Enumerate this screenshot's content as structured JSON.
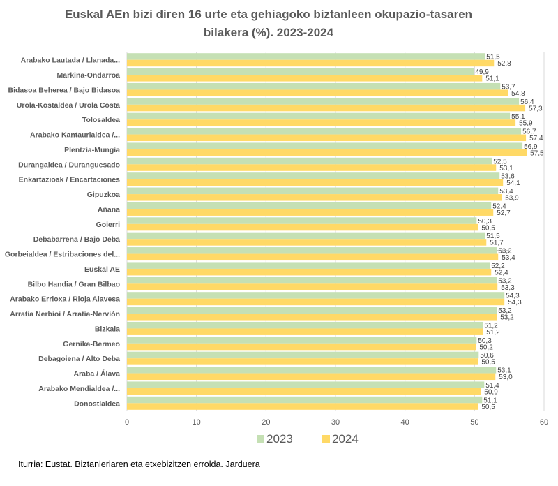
{
  "chart_data": {
    "type": "bar",
    "orientation": "horizontal",
    "title": "Euskal AEn bizi diren 16 urte eta gehiagoko biztanleen okupazio-tasaren bilakera (%). 2023-2024",
    "title_lines": [
      "Euskal AEn bizi diren 16 urte eta gehiagoko biztanleen okupazio-tasaren",
      "bilakera (%). 2023-2024"
    ],
    "xlabel": "",
    "ylabel": "",
    "xlim": [
      0,
      60
    ],
    "xticks": [
      0,
      10,
      20,
      30,
      40,
      50,
      60
    ],
    "grid": true,
    "legend_position": "bottom",
    "categories": [
      "Arabako Lautada  /  Llanada...",
      "Markina-Ondarroa",
      "Bidasoa Beherea  /  Bajo Bidasoa",
      "Urola-Kostaldea  /  Urola Costa",
      "Tolosaldea",
      "Arabako Kantaurialdea /...",
      "Plentzia-Mungia",
      "Durangaldea  /  Duranguesado",
      "Enkartazioak  /  Encartaciones",
      "Gipuzkoa",
      "Añana",
      "Goierri",
      "Debabarrena / Bajo Deba",
      "Gorbeialdea / Estribaciones del...",
      "Euskal AE",
      "Bilbo Handia  /  Gran Bilbao",
      "Arabako Errioxa / Rioja Alavesa",
      "Arratia Nerbioi  /  Arratia-Nervión",
      "Bizkaia",
      "Gernika-Bermeo",
      "Debagoiena  /  Alto Deba",
      "Araba / Álava",
      "Arabako Mendialdea  /...",
      "Donostialdea"
    ],
    "series": [
      {
        "name": "2023",
        "color": "#c5e0b4",
        "values": [
          51.5,
          49.9,
          53.7,
          56.4,
          55.1,
          56.7,
          56.9,
          52.5,
          53.6,
          53.4,
          52.4,
          50.3,
          51.5,
          53.2,
          52.2,
          53.2,
          54.3,
          53.2,
          51.2,
          50.3,
          50.6,
          53.1,
          51.4,
          51.1
        ],
        "labels": [
          "51,5",
          "49,9",
          "53,7",
          "56,4",
          "55,1",
          "56,7",
          "56,9",
          "52,5",
          "53,6",
          "53,4",
          "52,4",
          "50,3",
          "51,5",
          "53,2",
          "52,2",
          "53,2",
          "54,3",
          "53,2",
          "51,2",
          "50,3",
          "50,6",
          "53,1",
          "51,4",
          "51,1"
        ]
      },
      {
        "name": "2024",
        "color": "#ffd966",
        "values": [
          52.8,
          51.1,
          54.8,
          57.3,
          55.9,
          57.4,
          57.5,
          53.1,
          54.1,
          53.9,
          52.7,
          50.5,
          51.7,
          53.4,
          52.4,
          53.3,
          54.3,
          53.2,
          51.2,
          50.2,
          50.5,
          53.0,
          50.9,
          50.5
        ],
        "labels": [
          "52,8",
          "51,1",
          "54,8",
          "57,3",
          "55,9",
          "57,4",
          "57,5",
          "53,1",
          "54,1",
          "53,9",
          "52,7",
          "50,5",
          "51,7",
          "53,4",
          "52,4",
          "53,3",
          "54,3",
          "53,2",
          "51,2",
          "50,2",
          "50,5",
          "53,0",
          "50,9",
          "50,5"
        ]
      }
    ],
    "source": "Iturria: Eustat. Biztanleriaren eta etxebizitzen errolda. Jarduera"
  }
}
